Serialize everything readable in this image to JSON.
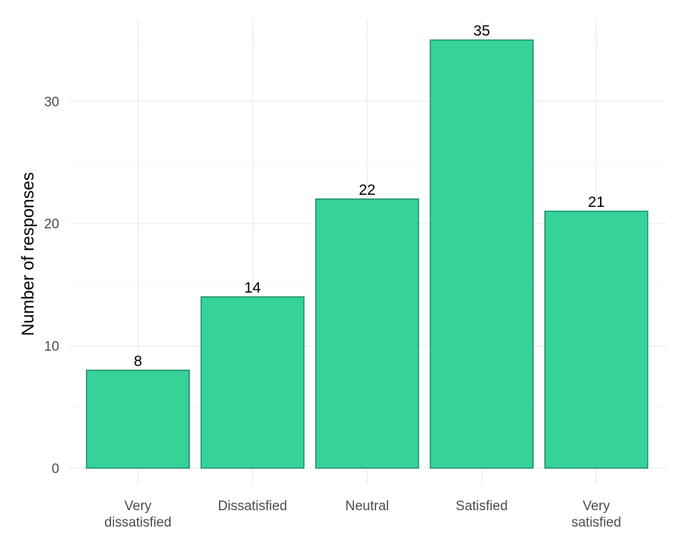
{
  "chart_data": {
    "type": "bar",
    "categories": [
      "Very dissatisfied",
      "Dissatisfied",
      "Neutral",
      "Satisfied",
      "Very satisfied"
    ],
    "category_label_lines": [
      [
        "Very",
        "dissatisfied"
      ],
      [
        "Dissatisfied"
      ],
      [
        "Neutral"
      ],
      [
        "Satisfied"
      ],
      [
        "Very",
        "satisfied"
      ]
    ],
    "values": [
      8,
      14,
      22,
      35,
      21
    ],
    "title": "",
    "xlabel": "",
    "ylabel": "Number of responses",
    "ylim": [
      0,
      35
    ],
    "y_ticks": [
      0,
      10,
      20,
      30
    ],
    "grid": true,
    "data_labels": true,
    "bar_fill": "#35d398",
    "bar_outline": "#1a8a66"
  }
}
